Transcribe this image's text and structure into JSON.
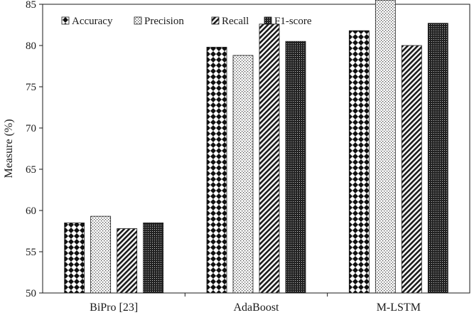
{
  "chart_data": {
    "type": "bar",
    "categories": [
      "BiPro [23]",
      "AdaBoost",
      "M-LSTM"
    ],
    "series": [
      {
        "name": "Accuracy",
        "values": [
          58.5,
          79.8,
          81.8
        ],
        "pattern": "diamond-check"
      },
      {
        "name": "Precision",
        "values": [
          59.3,
          78.8,
          85.5
        ],
        "pattern": "dotted-light"
      },
      {
        "name": "Recall",
        "values": [
          57.8,
          82.6,
          80.0
        ],
        "pattern": "diagonal-hatch"
      },
      {
        "name": "F1-score",
        "values": [
          58.5,
          80.5,
          82.7
        ],
        "pattern": "dense-dots"
      }
    ],
    "xlabel": "",
    "ylabel": "Measure (%)",
    "ylim": [
      50,
      85
    ],
    "yticks": [
      50,
      55,
      60,
      65,
      70,
      75,
      80,
      85
    ],
    "grid": false,
    "legend": "top"
  }
}
